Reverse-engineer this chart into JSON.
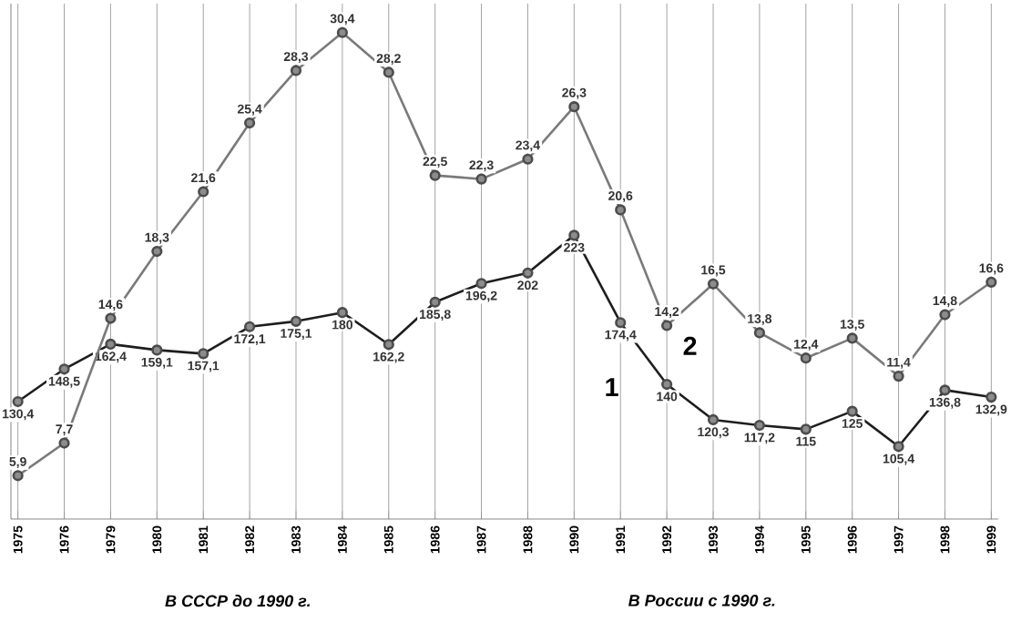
{
  "chart_data": {
    "type": "line",
    "categories": [
      "1975",
      "1976",
      "1979",
      "1980",
      "1981",
      "1982",
      "1983",
      "1984",
      "1985",
      "1986",
      "1987",
      "1988",
      "1990",
      "1991",
      "1992",
      "1993",
      "1994",
      "1995",
      "1996",
      "1997",
      "1998",
      "1999"
    ],
    "series": [
      {
        "name": "1",
        "color": "#1e1e1e",
        "values": [
          130.4,
          148.5,
          162.4,
          159.1,
          157.1,
          172.1,
          175.1,
          180,
          162.2,
          185.8,
          196.2,
          202,
          223,
          174.4,
          140,
          120.3,
          117.2,
          115,
          125,
          105.4,
          136.8,
          132.9
        ],
        "value_labels": [
          "130,4",
          "148,5",
          "162,4",
          "159,1",
          "157,1",
          "172,1",
          "175,1",
          "180",
          "162,2",
          "185,8",
          "196,2",
          "202",
          "223",
          "174,4",
          "140",
          "120,3",
          "117,2",
          "115",
          "125",
          "105,4",
          "136,8",
          "132,9"
        ]
      },
      {
        "name": "2",
        "color": "#7a7a7a",
        "axis": "y2",
        "values": [
          5.9,
          7.7,
          14.6,
          18.3,
          21.6,
          25.4,
          28.3,
          30.4,
          28.2,
          22.5,
          22.3,
          23.4,
          26.3,
          20.6,
          14.2,
          16.5,
          13.8,
          12.4,
          13.5,
          11.4,
          14.8,
          16.6
        ],
        "value_labels": [
          "5,9",
          "7,7",
          "14,6",
          "18,3",
          "21,6",
          "25,4",
          "28,3",
          "30,4",
          "28,2",
          "22,5",
          "22,3",
          "23,4",
          "26,3",
          "20,6",
          "14,2",
          "16,5",
          "13,8",
          "12,4",
          "13,5",
          "11,4",
          "14,8",
          "16,6"
        ]
      }
    ],
    "ylim": [
      65,
      352
    ],
    "y2lim": [
      3.5,
      32
    ],
    "tick_labels": "x",
    "grid": "x",
    "marker": "circle",
    "line_style": "solid",
    "annotations": [
      "В СССР до 1990 г.",
      "В России с 1990 г."
    ]
  }
}
